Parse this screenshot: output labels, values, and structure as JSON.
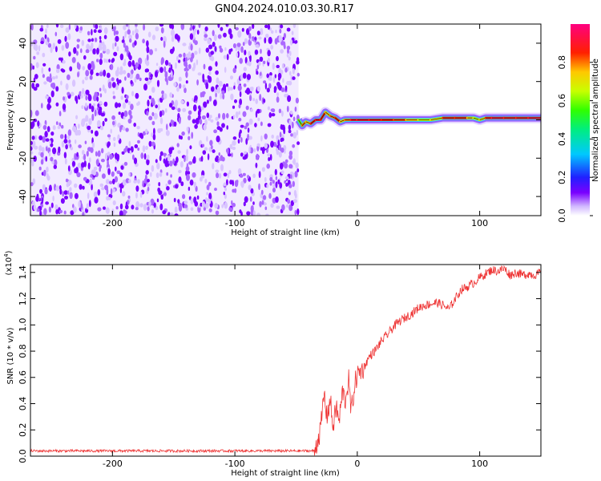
{
  "title": "GN04.2024.010.03.30.R17",
  "colorbar": {
    "label": "Normalized spectral amplitude",
    "ticks": [
      "0.0",
      "0.2",
      "0.4",
      "0.6",
      "0.8"
    ],
    "tick_values": [
      0.0,
      0.2,
      0.4,
      0.6,
      0.8
    ],
    "range": [
      0,
      1
    ],
    "colormap": "rainbow: white/violet at 0 → blue → cyan → green → yellow → red → magenta at 1"
  },
  "chart_data": [
    {
      "type": "heatmap",
      "name": "spectrogram",
      "xlabel": "Height of straight line (km)",
      "ylabel": "Frequency (Hz)",
      "xlim": [
        -267,
        150
      ],
      "ylim": [
        -50,
        50
      ],
      "xticks": [
        "-200",
        "-100",
        "0",
        "100"
      ],
      "xtick_values": [
        -200,
        -100,
        0,
        100
      ],
      "yticks": [
        "-40",
        "-20",
        "0",
        "20",
        "40"
      ],
      "ytick_values": [
        -40,
        -20,
        0,
        20,
        40
      ],
      "noise_region": {
        "x_range": [
          -267,
          -48
        ],
        "freq_range": [
          -50,
          50
        ],
        "amplitude_range": [
          0.0,
          0.15
        ]
      },
      "ridge": {
        "x": [
          -48,
          -45,
          -42,
          -38,
          -34,
          -30,
          -26,
          -22,
          -18,
          -14,
          -10,
          -5,
          0,
          10,
          20,
          30,
          40,
          50,
          60,
          70,
          80,
          90,
          95,
          100,
          105,
          110,
          120,
          130,
          140,
          150
        ],
        "freq": [
          0,
          -3,
          -1,
          -2,
          0,
          0,
          4,
          2,
          1,
          -1,
          0,
          0,
          0,
          0,
          0,
          0,
          0,
          0,
          0,
          1,
          1,
          1,
          1,
          0,
          1,
          1,
          1,
          1,
          1,
          1
        ],
        "amplitude": [
          0.3,
          0.9,
          0.7,
          0.8,
          0.9,
          0.9,
          0.8,
          0.7,
          0.9,
          0.8,
          0.7,
          0.9,
          0.9,
          0.9,
          0.85,
          0.85,
          0.8,
          0.7,
          0.6,
          0.8,
          0.9,
          0.8,
          0.7,
          0.6,
          0.8,
          0.9,
          0.9,
          0.85,
          0.9,
          0.9
        ]
      }
    },
    {
      "type": "line",
      "name": "snr",
      "xlabel": "Height of straight line (km)",
      "ylabel": "SNR (10 * v/v)",
      "y_multiplier": "(x10",
      "y_multiplier_exp": "4",
      "y_multiplier_close": ")",
      "xlim": [
        -267,
        150
      ],
      "ylim": [
        0,
        1.46
      ],
      "xticks": [
        "-200",
        "-100",
        "0",
        "100"
      ],
      "xtick_values": [
        -200,
        -100,
        0,
        100
      ],
      "yticks": [
        "0.0",
        "0.2",
        "0.4",
        "0.6",
        "0.8",
        "1.0",
        "1.2",
        "1.4"
      ],
      "ytick_values": [
        0.0,
        0.2,
        0.4,
        0.6,
        0.8,
        1.0,
        1.2,
        1.4
      ],
      "color": "#ee3333",
      "x": [
        -267,
        -200,
        -100,
        -50,
        -35,
        -30,
        -27,
        -25,
        -22,
        -20,
        -17,
        -15,
        -12,
        -10,
        -7,
        -5,
        -2,
        0,
        5,
        10,
        15,
        20,
        25,
        30,
        35,
        40,
        45,
        50,
        55,
        60,
        65,
        70,
        75,
        80,
        85,
        90,
        95,
        100,
        105,
        110,
        115,
        120,
        125,
        130,
        135,
        140,
        145,
        150
      ],
      "y": [
        0.04,
        0.04,
        0.04,
        0.04,
        0.04,
        0.2,
        0.48,
        0.3,
        0.43,
        0.22,
        0.38,
        0.25,
        0.5,
        0.42,
        0.58,
        0.33,
        0.55,
        0.62,
        0.67,
        0.76,
        0.81,
        0.88,
        0.93,
        0.99,
        1.03,
        1.06,
        1.09,
        1.13,
        1.15,
        1.16,
        1.17,
        1.15,
        1.12,
        1.2,
        1.27,
        1.29,
        1.32,
        1.36,
        1.39,
        1.42,
        1.41,
        1.43,
        1.38,
        1.4,
        1.38,
        1.39,
        1.38,
        1.4
      ],
      "noise_amplitude": 0.02
    }
  ]
}
